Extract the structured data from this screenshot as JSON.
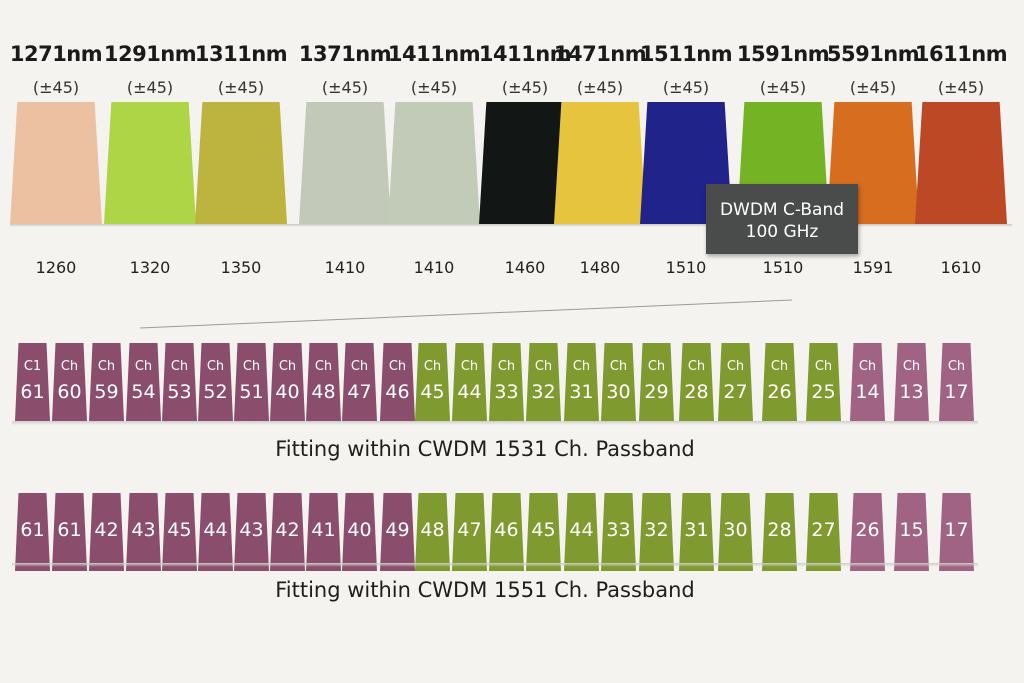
{
  "cwdm": {
    "bands": [
      {
        "wavelength": "1271nm",
        "tolerance": "(±45)",
        "lower": "1260",
        "color": "#ecc1a2"
      },
      {
        "wavelength": "1291nm",
        "tolerance": "(±45)",
        "lower": "1320",
        "color": "#aed545"
      },
      {
        "wavelength": "1311nm",
        "tolerance": "(±45)",
        "lower": "1350",
        "color": "#bcb43e"
      },
      {
        "wavelength": "1371nm",
        "tolerance": "(±45)",
        "lower": "1410",
        "color": "#c2c9b9"
      },
      {
        "wavelength": "1411nm",
        "tolerance": "(±45)",
        "lower": "1410",
        "color": "#c2cbb7"
      },
      {
        "wavelength": "1411nm",
        "tolerance": "(±45)",
        "lower": "1460",
        "color": "#121614"
      },
      {
        "wavelength": "1471nm",
        "tolerance": "(±45)",
        "lower": "1480",
        "color": "#e6c43e"
      },
      {
        "wavelength": "1511nm",
        "tolerance": "(±45)",
        "lower": "1510",
        "color": "#20248a"
      },
      {
        "wavelength": "1591nm",
        "tolerance": "(±45)",
        "lower": "1510",
        "color": "#74b424"
      },
      {
        "wavelength": "5591nm",
        "tolerance": "(±45)",
        "lower": "1591",
        "color": "#d66d1f"
      },
      {
        "wavelength": "1611nm",
        "tolerance": "(±45)",
        "lower": "1610",
        "color": "#bc4826"
      }
    ]
  },
  "callout": {
    "line1": "DWDM C-Band",
    "line2": "100 GHz"
  },
  "dwdm_row_1": {
    "caption": "Fitting within CWDM 1531 Ch. Passband",
    "channels": [
      {
        "tag": "C1",
        "num": "61",
        "color": "plum"
      },
      {
        "tag": "Ch",
        "num": "60",
        "color": "plum"
      },
      {
        "tag": "Ch",
        "num": "59",
        "color": "plum"
      },
      {
        "tag": "Ch",
        "num": "54",
        "color": "plum"
      },
      {
        "tag": "Ch",
        "num": "53",
        "color": "plum"
      },
      {
        "tag": "Ch",
        "num": "52",
        "color": "plum"
      },
      {
        "tag": "Ch",
        "num": "51",
        "color": "plum"
      },
      {
        "tag": "Ch",
        "num": "40",
        "color": "plum"
      },
      {
        "tag": "Ch",
        "num": "48",
        "color": "plum"
      },
      {
        "tag": "Ch",
        "num": "47",
        "color": "plum"
      },
      {
        "tag": "Ch",
        "num": "46",
        "color": "plum"
      },
      {
        "tag": "Ch",
        "num": "45",
        "color": "olive"
      },
      {
        "tag": "Ch",
        "num": "44",
        "color": "olive"
      },
      {
        "tag": "Ch",
        "num": "33",
        "color": "olive"
      },
      {
        "tag": "Ch",
        "num": "32",
        "color": "olive"
      },
      {
        "tag": "Ch",
        "num": "31",
        "color": "olive"
      },
      {
        "tag": "Ch",
        "num": "30",
        "color": "olive"
      },
      {
        "tag": "Ch",
        "num": "29",
        "color": "olive"
      },
      {
        "tag": "Ch",
        "num": "28",
        "color": "olive"
      },
      {
        "tag": "Ch",
        "num": "27",
        "color": "olive"
      },
      {
        "tag": "Ch",
        "num": "26",
        "color": "olive"
      },
      {
        "tag": "Ch",
        "num": "25",
        "color": "olive"
      },
      {
        "tag": "Ch",
        "num": "14",
        "color": "plum-light"
      },
      {
        "tag": "Ch",
        "num": "13",
        "color": "plum-light"
      },
      {
        "tag": "Ch",
        "num": "17",
        "color": "plum-light"
      }
    ]
  },
  "dwdm_row_2": {
    "caption": "Fitting within CWDM 1551 Ch. Passband",
    "channels": [
      {
        "num": "61",
        "color": "plum"
      },
      {
        "num": "61",
        "color": "plum"
      },
      {
        "num": "42",
        "color": "plum"
      },
      {
        "num": "43",
        "color": "plum"
      },
      {
        "num": "45",
        "color": "plum"
      },
      {
        "num": "44",
        "color": "plum"
      },
      {
        "num": "43",
        "color": "plum"
      },
      {
        "num": "42",
        "color": "plum"
      },
      {
        "num": "41",
        "color": "plum"
      },
      {
        "num": "40",
        "color": "plum"
      },
      {
        "num": "49",
        "color": "plum"
      },
      {
        "num": "48",
        "color": "olive"
      },
      {
        "num": "47",
        "color": "olive"
      },
      {
        "num": "46",
        "color": "olive"
      },
      {
        "num": "45",
        "color": "olive"
      },
      {
        "num": "44",
        "color": "olive"
      },
      {
        "num": "33",
        "color": "olive"
      },
      {
        "num": "32",
        "color": "olive"
      },
      {
        "num": "31",
        "color": "olive"
      },
      {
        "num": "30",
        "color": "olive"
      },
      {
        "num": "28",
        "color": "olive"
      },
      {
        "num": "27",
        "color": "olive"
      },
      {
        "num": "26",
        "color": "plum-light"
      },
      {
        "num": "15",
        "color": "plum-light"
      },
      {
        "num": "17",
        "color": "plum-light"
      }
    ]
  }
}
